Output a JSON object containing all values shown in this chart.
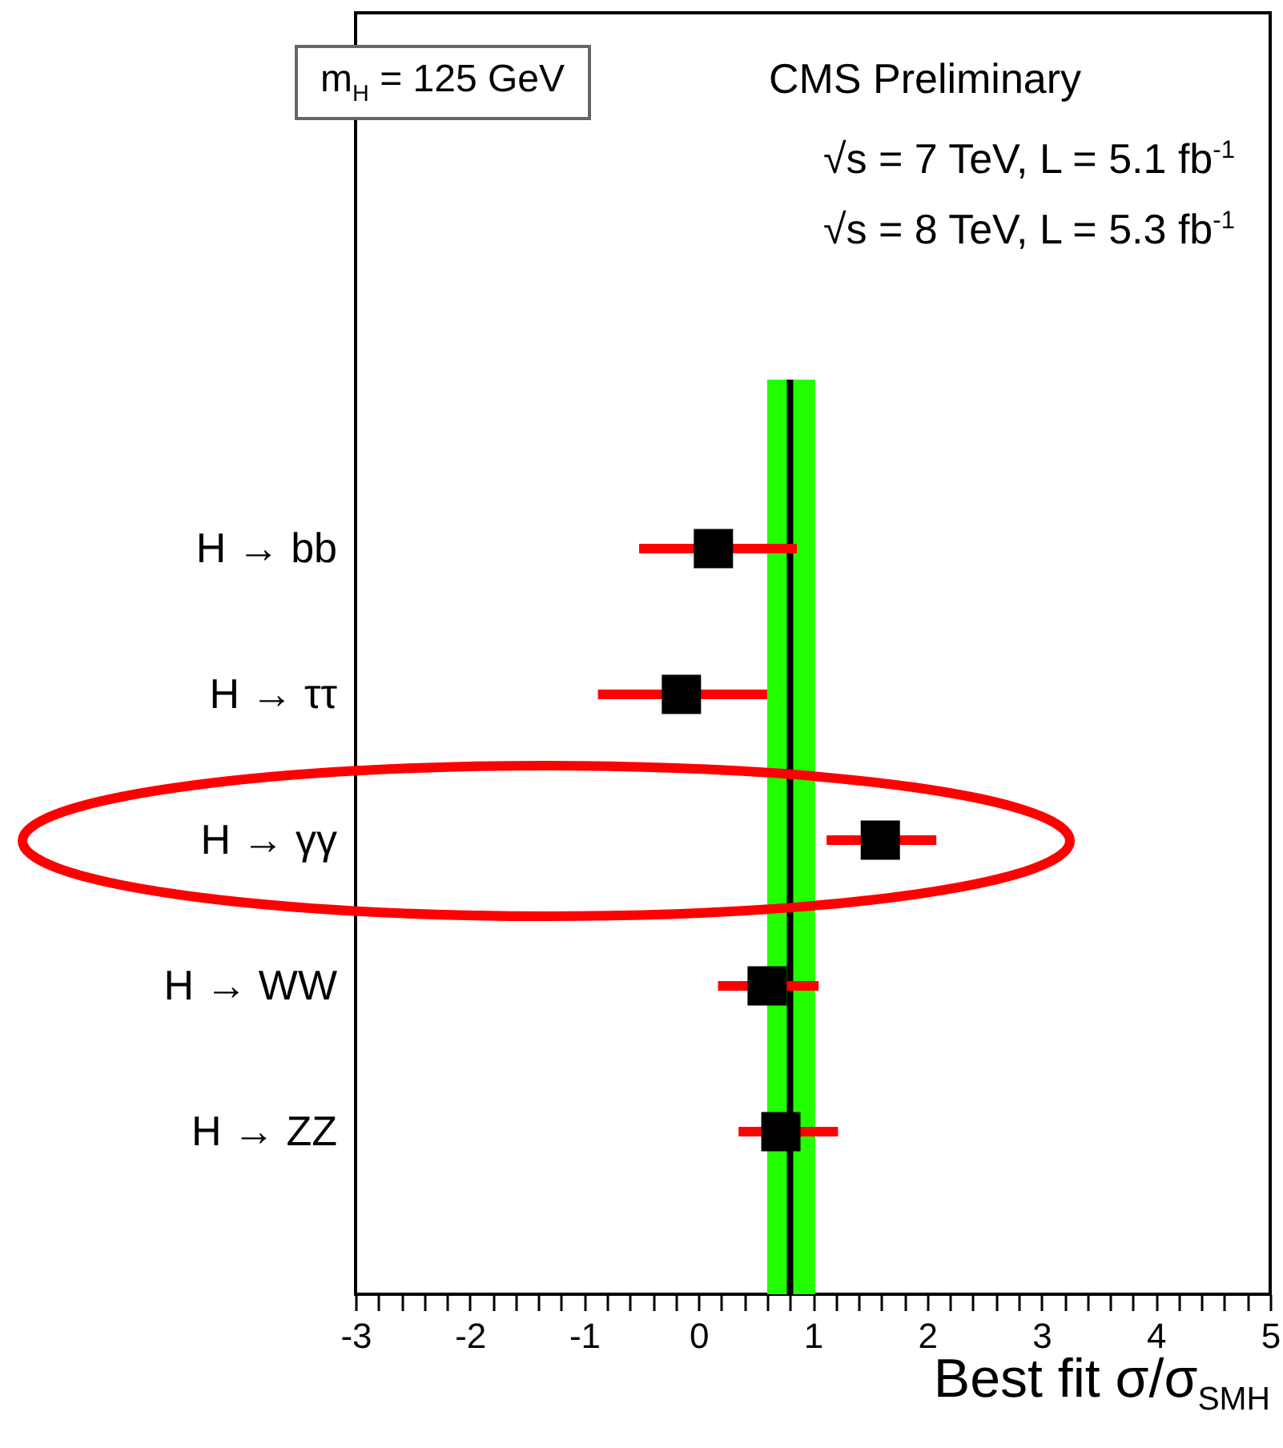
{
  "chart_data": {
    "type": "scatter",
    "orientation": "horizontal",
    "marker": "square",
    "xlabel": "Best fit σ/σ$_{SMH}$",
    "categories": [
      "H → bb",
      "H → ττ",
      "H → γγ",
      "H → WW",
      "H → ZZ"
    ],
    "series": [
      {
        "color": "#000000",
        "values": [
          0.13,
          -0.15,
          1.59,
          0.6,
          0.72
        ],
        "errors": [
          [
            -0.52,
            0.86
          ],
          [
            -0.88,
            0.6
          ],
          [
            1.12,
            2.08
          ],
          [
            0.17,
            1.05
          ],
          [
            0.35,
            1.22
          ]
        ]
      }
    ],
    "xlim": [
      -3,
      5
    ],
    "xticks": [
      -3,
      {
        "value": -2.8,
        "label": null
      },
      {
        "value": -2.6,
        "label": null
      },
      {
        "value": -2.4,
        "label": null
      },
      {
        "value": -2.2,
        "label": null
      },
      -2,
      {
        "value": -1.8,
        "label": null
      },
      {
        "value": -1.6,
        "label": null
      },
      {
        "value": -1.4,
        "label": null
      },
      {
        "value": -1.2,
        "label": null
      },
      -1,
      {
        "value": -0.8,
        "label": null
      },
      {
        "value": -0.6,
        "label": null
      },
      {
        "value": -0.4,
        "label": null
      },
      {
        "value": -0.2,
        "label": null
      },
      0,
      {
        "value": 0.2,
        "label": null
      },
      {
        "value": 0.4,
        "label": null
      },
      {
        "value": 0.6,
        "label": null
      },
      {
        "value": 0.8,
        "label": null
      },
      1,
      {
        "value": 1.2,
        "label": null
      },
      {
        "value": 1.4,
        "label": null
      },
      {
        "value": 1.6,
        "label": null
      },
      {
        "value": 1.8,
        "label": null
      },
      2,
      {
        "value": 2.2,
        "label": null
      },
      {
        "value": 2.4,
        "label": null
      },
      {
        "value": 2.6,
        "label": null
      },
      {
        "value": 2.8,
        "label": null
      },
      3,
      {
        "value": 3.2,
        "label": null
      },
      {
        "value": 3.4,
        "label": null
      },
      {
        "value": 3.6,
        "label": null
      },
      {
        "value": 3.8,
        "label": null
      },
      4,
      {
        "value": 4.2,
        "label": null
      },
      {
        "value": 4.4,
        "label": null
      },
      {
        "value": 4.6,
        "label": null
      },
      {
        "value": 4.8,
        "label": null
      },
      5
    ],
    "ref_lines": [
      {
        "axis": "x",
        "value": 0.8,
        "color": "#000000"
      }
    ],
    "bands": [
      {
        "axis": "x",
        "from": 0.6,
        "to": 1.02,
        "color": "#22ff00"
      }
    ],
    "annotations": [
      "m$_{H}$ = 125 GeV",
      "CMS Preliminary",
      "√s = 7 TeV, L = 5.1 fb$^{-1}$",
      "√s = 8 TeV, L = 5.3 fb$^{-1}$"
    ]
  }
}
